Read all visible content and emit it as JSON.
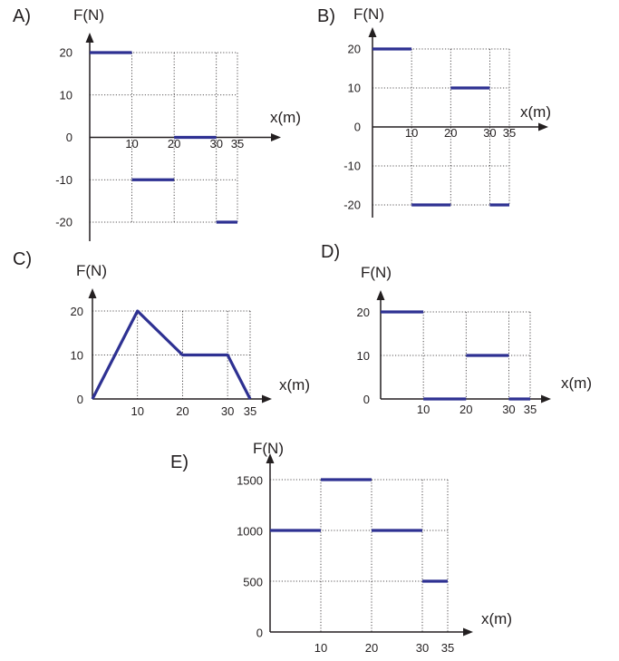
{
  "chart_data": [
    {
      "type": "line",
      "panel_label": "A)",
      "ylabel": "F(N)",
      "xlabel": "x(m)",
      "x_ticks": [
        "10",
        "20",
        "30",
        "35"
      ],
      "y_ticks": [
        "20",
        "10",
        "0",
        "-10",
        "-20"
      ],
      "xlim": [
        0,
        35
      ],
      "ylim": [
        -20,
        20
      ],
      "grid": true,
      "series": [
        {
          "segments": [
            [
              [
                0,
                20
              ],
              [
                10,
                20
              ]
            ],
            [
              [
                10,
                -10
              ],
              [
                20,
                -10
              ]
            ],
            [
              [
                20,
                0
              ],
              [
                30,
                0
              ]
            ],
            [
              [
                30,
                -20
              ],
              [
                35,
                -20
              ]
            ]
          ]
        }
      ]
    },
    {
      "type": "line",
      "panel_label": "B)",
      "ylabel": "F(N)",
      "xlabel": "x(m)",
      "x_ticks": [
        "10",
        "20",
        "30",
        "35"
      ],
      "y_ticks": [
        "20",
        "10",
        "0",
        "-10",
        "-20"
      ],
      "xlim": [
        0,
        35
      ],
      "ylim": [
        -20,
        20
      ],
      "grid": true,
      "series": [
        {
          "segments": [
            [
              [
                0,
                20
              ],
              [
                10,
                20
              ]
            ],
            [
              [
                10,
                -20
              ],
              [
                20,
                -20
              ]
            ],
            [
              [
                20,
                10
              ],
              [
                30,
                10
              ]
            ],
            [
              [
                30,
                -20
              ],
              [
                35,
                -20
              ]
            ]
          ]
        }
      ]
    },
    {
      "type": "line",
      "panel_label": "C)",
      "ylabel": "F(N)",
      "xlabel": "x(m)",
      "x_ticks": [
        "10",
        "20",
        "30",
        "35"
      ],
      "y_ticks": [
        "20",
        "10",
        "0"
      ],
      "xlim": [
        0,
        35
      ],
      "ylim": [
        0,
        20
      ],
      "grid": true,
      "series": [
        {
          "segments": [
            [
              [
                0,
                0
              ],
              [
                10,
                20
              ],
              [
                20,
                10
              ],
              [
                30,
                10
              ],
              [
                35,
                0
              ]
            ]
          ]
        }
      ]
    },
    {
      "type": "line",
      "panel_label": "D)",
      "ylabel": "F(N)",
      "xlabel": "x(m)",
      "x_ticks": [
        "10",
        "20",
        "30",
        "35"
      ],
      "y_ticks": [
        "20",
        "10",
        "0"
      ],
      "xlim": [
        0,
        35
      ],
      "ylim": [
        0,
        20
      ],
      "grid": true,
      "series": [
        {
          "segments": [
            [
              [
                0,
                20
              ],
              [
                10,
                20
              ]
            ],
            [
              [
                10,
                0
              ],
              [
                20,
                0
              ]
            ],
            [
              [
                20,
                10
              ],
              [
                30,
                10
              ]
            ],
            [
              [
                30,
                0
              ],
              [
                35,
                0
              ]
            ]
          ]
        }
      ]
    },
    {
      "type": "line",
      "panel_label": "E)",
      "ylabel": "F(N)",
      "xlabel": "x(m)",
      "x_ticks": [
        "10",
        "20",
        "30",
        "35"
      ],
      "y_ticks": [
        "1500",
        "1000",
        "500",
        "0"
      ],
      "xlim": [
        0,
        35
      ],
      "ylim": [
        0,
        1500
      ],
      "grid": true,
      "series": [
        {
          "segments": [
            [
              [
                0,
                1000
              ],
              [
                10,
                1000
              ]
            ],
            [
              [
                10,
                1500
              ],
              [
                20,
                1500
              ]
            ],
            [
              [
                20,
                1000
              ],
              [
                30,
                1000
              ]
            ],
            [
              [
                30,
                500
              ],
              [
                35,
                500
              ]
            ]
          ]
        }
      ]
    }
  ],
  "colors": {
    "data_line": "#2e3192",
    "axis": "#231f20",
    "grid": "#231f20"
  }
}
